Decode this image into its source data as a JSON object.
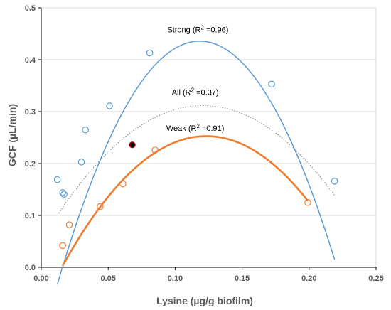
{
  "chart_data": {
    "type": "scatter",
    "xlabel": "Lysine (µg/g biofilm)",
    "ylabel": "GCF (µL/min)",
    "xlim": [
      0,
      0.25
    ],
    "ylim": [
      0,
      0.5
    ],
    "x_ticks": [
      "0.00",
      "0.05",
      "0.10",
      "0.15",
      "0.20",
      "0.25"
    ],
    "y_ticks": [
      "0.0",
      "0.1",
      "0.2",
      "0.3",
      "0.4",
      "0.5"
    ],
    "grid": "horizontal",
    "series": [
      {
        "key": "strong",
        "name": "Strong",
        "color": "#5b9bd5",
        "marker": "open-circle",
        "points": [
          [
            0.012,
            0.169
          ],
          [
            0.016,
            0.144
          ],
          [
            0.017,
            0.141
          ],
          [
            0.03,
            0.203
          ],
          [
            0.033,
            0.265
          ],
          [
            0.051,
            0.311
          ],
          [
            0.081,
            0.413
          ],
          [
            0.172,
            0.353
          ],
          [
            0.219,
            0.166
          ]
        ],
        "trend": {
          "label_prefix": "Strong (R",
          "label_suffix": " =0.96)",
          "r2": 0.96,
          "color": "#5b9bd5",
          "style": "solid",
          "poly": [
            -0.145,
            9.82,
            -41.5
          ],
          "x_range": [
            0.012,
            0.219
          ]
        }
      },
      {
        "key": "weak",
        "name": "Weak",
        "color": "#ed7d31",
        "marker": "open-circle",
        "points": [
          [
            0.016,
            0.042
          ],
          [
            0.021,
            0.082
          ],
          [
            0.044,
            0.117
          ],
          [
            0.061,
            0.161
          ],
          [
            0.085,
            0.226
          ],
          [
            0.199,
            0.125
          ]
        ],
        "trend": {
          "label_prefix": "Weak (R",
          "label_suffix": " =0.91)",
          "r2": 0.91,
          "color": "#ed7d31",
          "style": "solid",
          "poly": [
            -0.077,
            5.35,
            -21.7
          ],
          "x_range": [
            0.016,
            0.199
          ]
        }
      },
      {
        "key": "all",
        "name": "All",
        "color": "#000000",
        "marker": "filled-circle",
        "points": [
          [
            0.068,
            0.236
          ]
        ],
        "trend": {
          "label_prefix": "All (R",
          "label_suffix": " =0.37)",
          "r2": 0.37,
          "color": "#7f7f7f",
          "style": "dotted",
          "poly": [
            0.051,
            4.32,
            -17.9
          ],
          "x_range": [
            0.013,
            0.219
          ]
        }
      }
    ]
  }
}
